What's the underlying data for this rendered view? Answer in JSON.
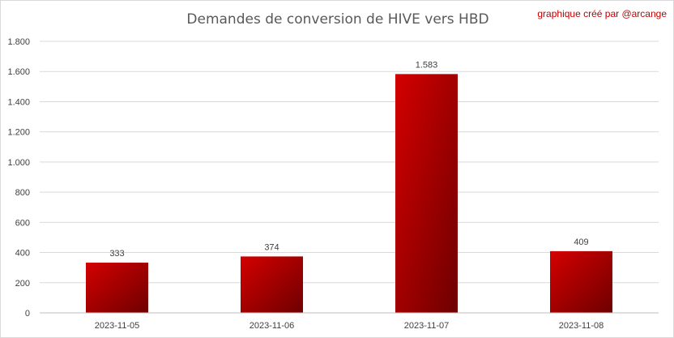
{
  "chart_data": {
    "type": "bar",
    "title": "Demandes de conversion de HIVE vers HBD",
    "credit": "graphique créé par @arcange",
    "categories": [
      "2023-11-05",
      "2023-11-06",
      "2023-11-07",
      "2023-11-08"
    ],
    "values": [
      333,
      374,
      1583,
      409
    ],
    "data_labels": [
      "333",
      "374",
      "1.583",
      "409"
    ],
    "ylim": [
      0,
      1800
    ],
    "yticks": [
      {
        "value": 0,
        "label": "0"
      },
      {
        "value": 200,
        "label": "200"
      },
      {
        "value": 400,
        "label": "400"
      },
      {
        "value": 600,
        "label": "600"
      },
      {
        "value": 800,
        "label": "800"
      },
      {
        "value": 1000,
        "label": "1.000"
      },
      {
        "value": 1200,
        "label": "1.200"
      },
      {
        "value": 1400,
        "label": "1.400"
      },
      {
        "value": 1600,
        "label": "1.600"
      },
      {
        "value": 1800,
        "label": "1.800"
      }
    ],
    "grid": true,
    "legend": "none",
    "bar_color_light": "#d40000",
    "bar_color_dark": "#6e0000",
    "credit_color": "#c00000"
  }
}
